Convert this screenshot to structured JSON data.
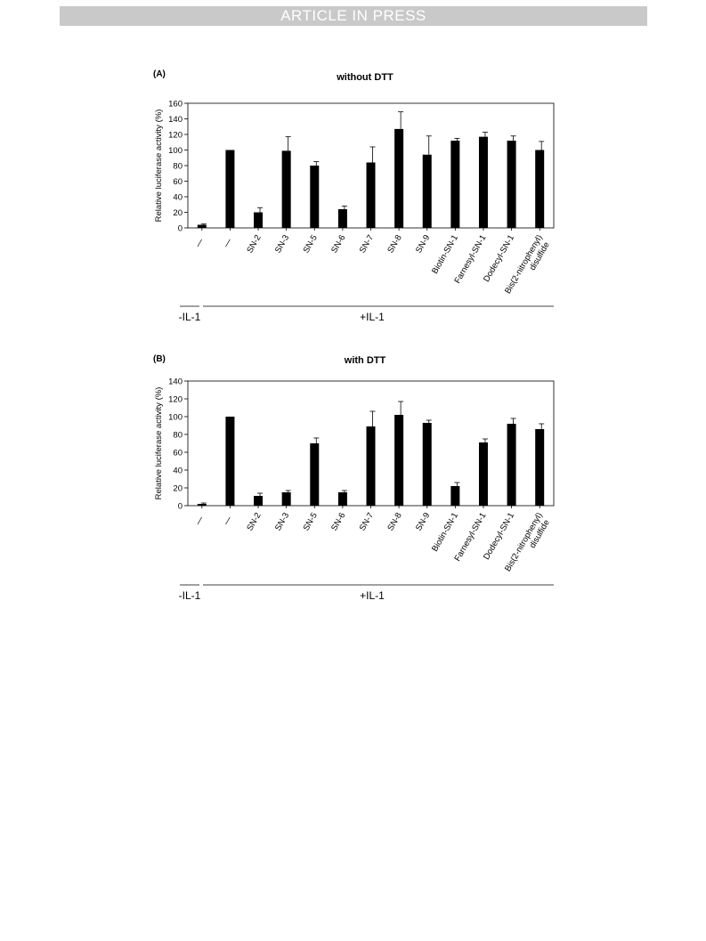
{
  "header": {
    "banner": "ARTICLE IN PRESS"
  },
  "groups": [
    {
      "label": "-IL-1"
    },
    {
      "label": "+IL-1"
    }
  ],
  "chart_data": [
    {
      "type": "bar",
      "panel_label": "(A)",
      "title": "without DTT",
      "ylabel": "Relative luciferase activity (%)",
      "xlabel": "",
      "ylim": [
        0,
        160
      ],
      "yticks": [
        0,
        20,
        40,
        60,
        80,
        100,
        120,
        140,
        160
      ],
      "grid": false,
      "categories": [
        "—",
        "—",
        "SN-2",
        "SN-3",
        "SN-5",
        "SN-6",
        "SN-7",
        "SN-8",
        "SN-9",
        "Biotin-SN-1",
        "Farnesyl-SN-1",
        "Dodecyl-SN-1",
        "Bis(2-nitrophenyl) disulfide"
      ],
      "values": [
        4,
        100,
        20,
        99,
        80,
        24,
        84,
        127,
        94,
        112,
        117,
        112,
        100
      ],
      "errors": [
        1,
        0,
        6,
        18,
        5,
        4,
        20,
        22,
        24,
        3,
        6,
        6,
        11
      ],
      "bar_color": "#000000"
    },
    {
      "type": "bar",
      "panel_label": "(B)",
      "title": "with DTT",
      "ylabel": "Relative luciferase activity (%)",
      "xlabel": "",
      "ylim": [
        0,
        140
      ],
      "yticks": [
        0,
        20,
        40,
        60,
        80,
        100,
        120,
        140
      ],
      "grid": false,
      "categories": [
        "—",
        "—",
        "SN-2",
        "SN-3",
        "SN-5",
        "SN-6",
        "SN-7",
        "SN-8",
        "SN-9",
        "Biotin-SN-1",
        "Farnesyl-SN-1",
        "Dodecyl-SN-1",
        "Bis(2-nitrophenyl) disulfide"
      ],
      "values": [
        2,
        100,
        11,
        15,
        70,
        15,
        89,
        102,
        93,
        22,
        71,
        92,
        86
      ],
      "errors": [
        1,
        0,
        3,
        2,
        6,
        2,
        17,
        15,
        3,
        4,
        4,
        6,
        6
      ],
      "bar_color": "#000000"
    }
  ]
}
